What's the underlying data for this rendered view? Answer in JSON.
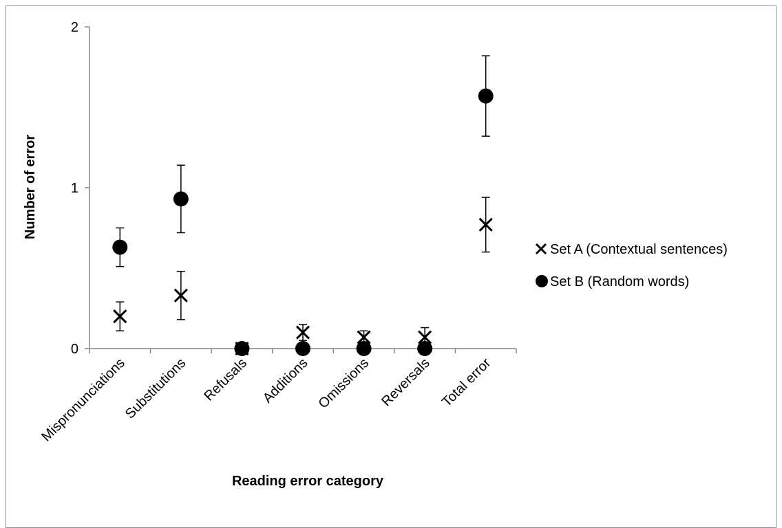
{
  "chart_data": {
    "type": "scatter",
    "categories": [
      "Mispronunciations",
      "Substitutions",
      "Refusals",
      "Additions",
      "Omissions",
      "Reversals",
      "Total error"
    ],
    "series": [
      {
        "name": "Set A (Contextual sentences)",
        "marker": "x",
        "values": [
          0.2,
          0.33,
          0.0,
          0.1,
          0.07,
          0.07,
          0.77
        ],
        "error": [
          0.09,
          0.15,
          0.0,
          0.05,
          0.04,
          0.06,
          0.17
        ]
      },
      {
        "name": "Set B (Random words)",
        "marker": "circle",
        "values": [
          0.63,
          0.93,
          0.0,
          0.0,
          0.0,
          0.0,
          1.57
        ],
        "error": [
          0.12,
          0.21,
          0.0,
          0.0,
          0.0,
          0.0,
          0.25
        ]
      }
    ],
    "y_ticks": [
      "0",
      "1",
      "2"
    ],
    "xlabel": "Reading error category",
    "ylabel": "Number of error",
    "ylim": [
      0,
      2
    ],
    "grid": false,
    "legend_position": "right",
    "colors": {
      "marker": "#000000",
      "axis": "#868686",
      "frame": "#8c8c8c"
    }
  }
}
